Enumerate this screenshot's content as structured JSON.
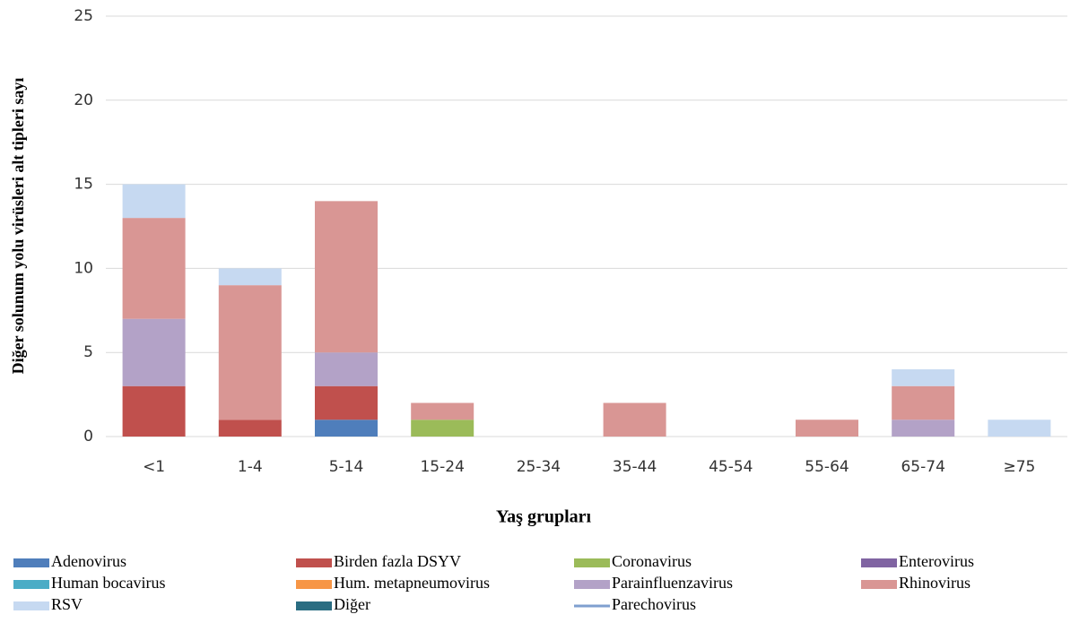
{
  "chart_data": {
    "type": "stacked-bar",
    "xlabel": "Yaş grupları",
    "ylabel": "Diğer solunum yolu virüsleri alt tipleri sayı",
    "categories": [
      "<1",
      "1-4",
      "5-14",
      "15-24",
      "25-34",
      "35-44",
      "45-54",
      "55-64",
      "65-74",
      "≥75"
    ],
    "series": [
      {
        "name": "Adenovirus",
        "color": "#4f7ebb",
        "values": [
          0,
          0,
          1,
          0,
          0,
          0,
          0,
          0,
          0,
          0
        ]
      },
      {
        "name": "Birden fazla DSYV",
        "color": "#c0504d",
        "values": [
          3,
          1,
          2,
          0,
          0,
          0,
          0,
          0,
          0,
          0
        ]
      },
      {
        "name": "Coronavirus",
        "color": "#9bbb59",
        "values": [
          0,
          0,
          0,
          1,
          0,
          0,
          0,
          0,
          0,
          0
        ]
      },
      {
        "name": "Enterovirus",
        "color": "#8064a2",
        "values": [
          0,
          0,
          0,
          0,
          0,
          0,
          0,
          0,
          0,
          0
        ]
      },
      {
        "name": "Human bocavirus",
        "color": "#4bacc6",
        "values": [
          0,
          0,
          0,
          0,
          0,
          0,
          0,
          0,
          0,
          0
        ]
      },
      {
        "name": "Hum. metapneumovirus",
        "color": "#f79646",
        "values": [
          0,
          0,
          0,
          0,
          0,
          0,
          0,
          0,
          0,
          0
        ]
      },
      {
        "name": "Parainfluenzavirus",
        "color": "#b3a2c7",
        "values": [
          4,
          0,
          2,
          0,
          0,
          0,
          0,
          0,
          1,
          0
        ]
      },
      {
        "name": "Rhinovirus",
        "color": "#d99694",
        "values": [
          6,
          8,
          9,
          1,
          0,
          2,
          0,
          1,
          2,
          0
        ]
      },
      {
        "name": "RSV",
        "color": "#c6d9f1",
        "values": [
          2,
          1,
          0,
          0,
          0,
          0,
          0,
          0,
          1,
          1
        ]
      },
      {
        "name": "Diğer",
        "color": "#2a6d82",
        "values": [
          0,
          0,
          0,
          0,
          0,
          0,
          0,
          0,
          0,
          0
        ]
      },
      {
        "name": "Parechovirus",
        "color": "#7f9fcf",
        "legend_style": "line",
        "values": [
          0,
          0,
          0,
          0,
          0,
          0,
          0,
          0,
          0,
          0
        ]
      }
    ],
    "ylim": [
      0,
      25
    ],
    "yticks": [
      0,
      5,
      10,
      15,
      20,
      25
    ],
    "grid": true
  }
}
